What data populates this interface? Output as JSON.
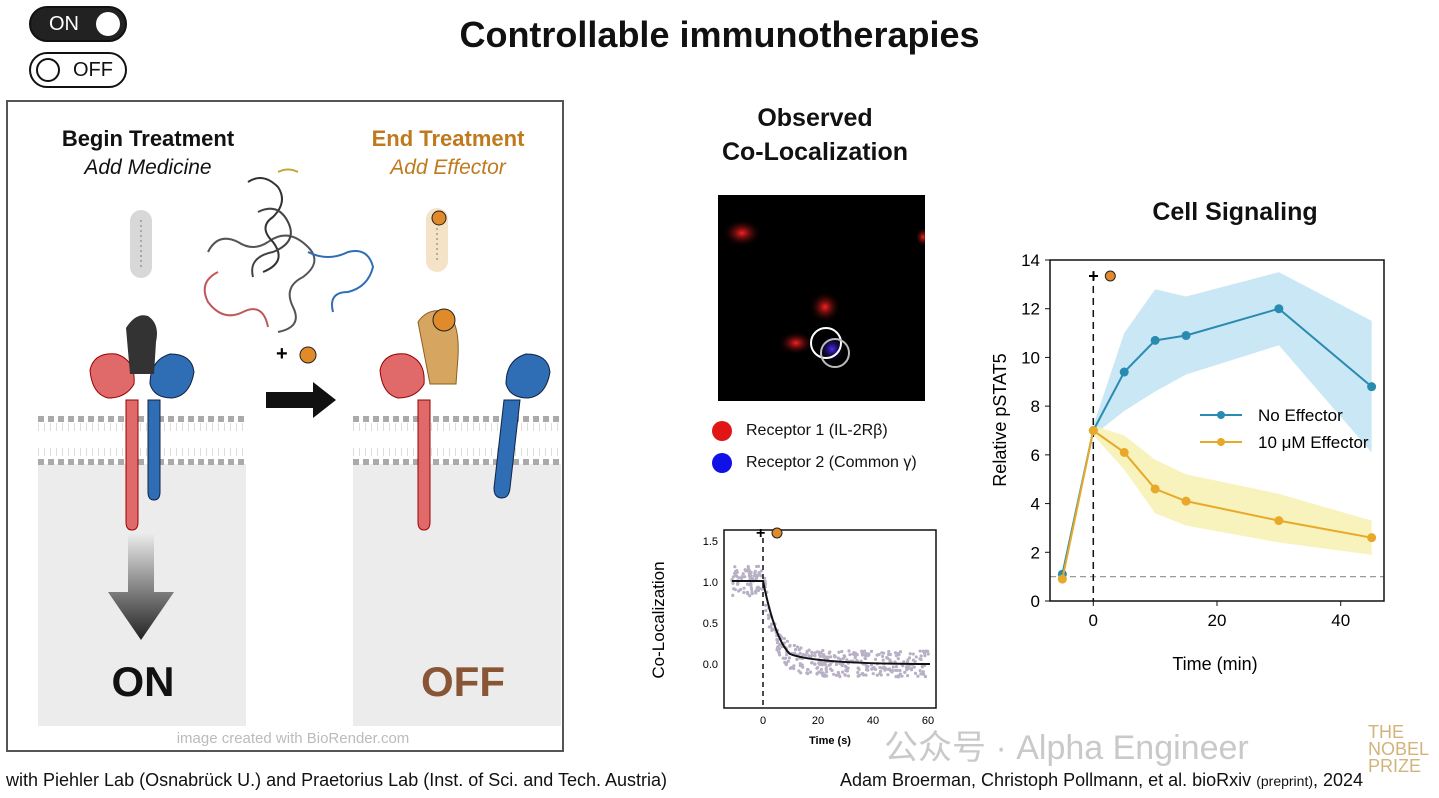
{
  "title": "Controllable immunotherapies",
  "toggles": {
    "on_label": "ON",
    "off_label": "OFF"
  },
  "left_panel": {
    "begin": {
      "heading": "Begin Treatment",
      "sub": "Add Medicine"
    },
    "end": {
      "heading": "End Treatment",
      "sub": "Add Effector"
    },
    "state_on": "ON",
    "state_off": "OFF",
    "plus": "+",
    "credit": "image created with BioRender.com",
    "colors": {
      "receptor1": "#e06a6a",
      "receptor2": "#2f6db5",
      "medicine": "#333333",
      "effector": "#e0a050",
      "end_heading": "#c07a1e",
      "off_text": "#8a5535"
    }
  },
  "microscopy": {
    "title_line1": "Observed",
    "title_line2": "Co-Localization",
    "legend": [
      {
        "label": "Receptor 1 (IL-2Rβ)",
        "color": "#e01515"
      },
      {
        "label": "Receptor 2 (Common γ)",
        "color": "#1010e8"
      }
    ]
  },
  "colocalization_chart": {
    "ylabel": "Co-Localization",
    "xlabel": "Time (s)",
    "xticks": [
      "0",
      "20",
      "40",
      "60"
    ],
    "yticks": [
      "0.0",
      "0.5",
      "1.0",
      "1.5"
    ],
    "plus": "+"
  },
  "signaling_title": "Cell Signaling",
  "chart_data": {
    "type": "line",
    "title": "Cell Signaling",
    "xlabel": "Time (min)",
    "ylabel": "Relative pSTAT5",
    "xlim": [
      -7,
      47
    ],
    "ylim": [
      0,
      14
    ],
    "xticks": [
      "0",
      "20",
      "40"
    ],
    "yticks": [
      "0",
      "2",
      "4",
      "6",
      "8",
      "10",
      "12",
      "14"
    ],
    "legend_position": "center-right",
    "series": [
      {
        "name": "No Effector",
        "color": "#2a8bb0",
        "band_color": "#bfe3f3",
        "x": [
          -5,
          0,
          5,
          10,
          15,
          30,
          45
        ],
        "y": [
          1.1,
          7.0,
          9.4,
          10.7,
          10.9,
          12.0,
          8.8
        ],
        "upper": [
          1.3,
          7.2,
          11.0,
          12.8,
          12.5,
          13.5,
          11.5
        ],
        "lower": [
          0.9,
          6.8,
          7.8,
          8.6,
          9.3,
          10.5,
          6.1
        ]
      },
      {
        "name": "10 μM Effector",
        "color": "#e8a92a",
        "band_color": "#f7f0b0",
        "x": [
          -5,
          0,
          5,
          10,
          15,
          30,
          45
        ],
        "y": [
          0.9,
          7.0,
          6.1,
          4.6,
          4.1,
          3.3,
          2.6
        ],
        "upper": [
          1.1,
          7.2,
          6.8,
          5.8,
          5.2,
          4.4,
          3.3
        ],
        "lower": [
          0.7,
          6.8,
          5.4,
          3.6,
          3.1,
          2.4,
          1.9
        ]
      }
    ],
    "baseline": 1.0,
    "marker_x": 0
  },
  "footer": {
    "left": "with Piehler Lab (Osnabrück U.) and Praetorius Lab (Inst. of Sci. and Tech. Austria)",
    "right_main": "Adam Broerman, Christoph Pollmann, et al. bioRxiv",
    "right_small": "(preprint)",
    "right_year": "2024"
  },
  "watermark": {
    "text": "公众号 · Alpha Engineer",
    "logo_line1": "THE",
    "logo_line2": "NOBEL",
    "logo_line3": "PRIZE"
  }
}
